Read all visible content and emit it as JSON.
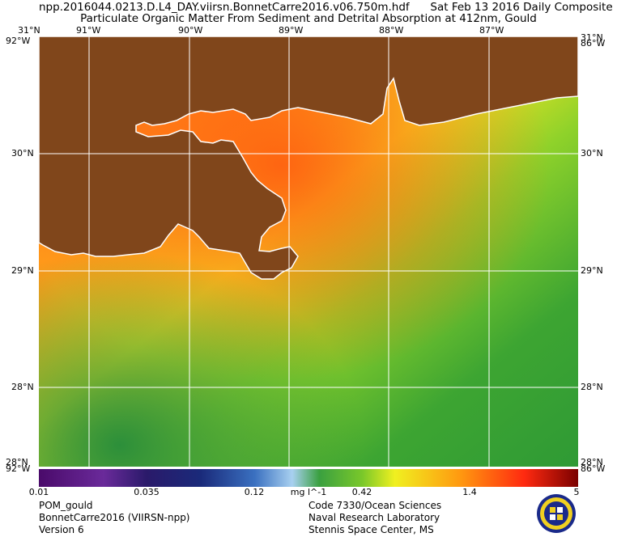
{
  "header": {
    "line1": "npp.2016044.0213.D.L4_DAY.viirsn.BonnetCarre2016.v06.750m.hdf      Sat Feb 13 2016 Daily Composite",
    "line2": "Particulate Organic Matter From Sediment and Detrital Absorption at 412nm, Gould"
  },
  "map": {
    "lon_labels": [
      "91°W",
      "90°W",
      "89°W",
      "88°W",
      "87°W"
    ],
    "lat_labels": [
      "30°N",
      "29°N",
      "28°N"
    ],
    "corner_top_left": "31°N",
    "corner_top_left_lon": "92°W",
    "corner_top_right": "31°N",
    "corner_top_right_lon": "86°W",
    "corner_bottom_left": "28°N",
    "corner_bottom_left_lon": "92°W",
    "corner_bottom_right": "28°N",
    "corner_bottom_right_lon": "86°W",
    "colors": {
      "land": "#80461b",
      "coast": "#ffffff",
      "grid": "#ffffff"
    }
  },
  "colorbar": {
    "ticks": [
      "0.01",
      "0.035",
      "0.12",
      "0.42",
      "1.4",
      "5"
    ],
    "units": "mg l^-1"
  },
  "footer": {
    "left": [
      "POM_gould",
      "BonnetCarre2016 (VIIRSN-npp)",
      "Version 6"
    ],
    "right": [
      "Code 7330/Ocean Sciences",
      "Naval Research Laboratory",
      "Stennis Space Center, MS"
    ]
  }
}
